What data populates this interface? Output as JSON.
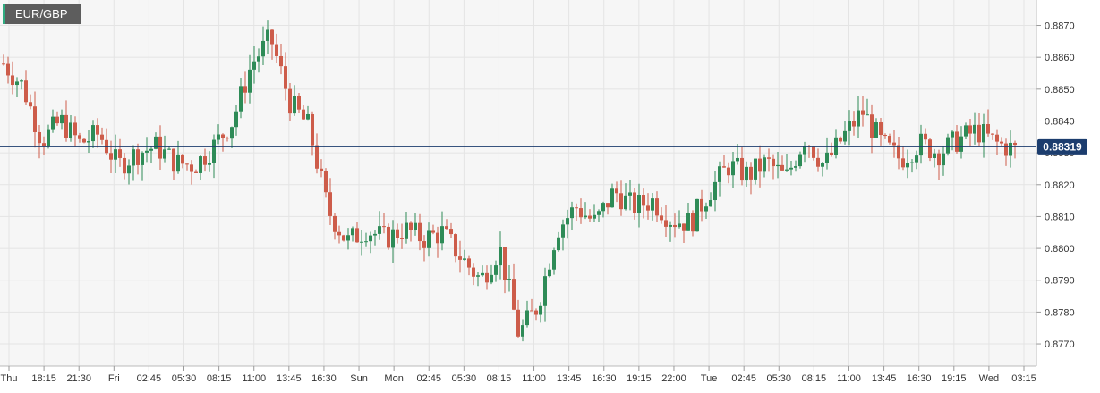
{
  "symbol": "EUR/GBP",
  "price_badge": "0.88319",
  "colors": {
    "plot_background": "#f6f6f6",
    "grid": "#e4e4e4",
    "up_candle": "#2e8b57",
    "down_candle": "#cd5c4a",
    "price_line": "#1c3d6e",
    "axis_text": "#333333"
  },
  "chart_data": {
    "type": "candlestick",
    "title": "EUR/GBP",
    "xlabel": "",
    "ylabel": "",
    "ylim": [
      0.8763,
      0.8878
    ],
    "y_ticks": [
      "0.8770",
      "0.8780",
      "0.8790",
      "0.8800",
      "0.8810",
      "0.8820",
      "0.8830",
      "0.8840",
      "0.8850",
      "0.8860",
      "0.8870"
    ],
    "x_ticks": [
      "Thu",
      "18:15",
      "21:30",
      "Fri",
      "02:45",
      "05:30",
      "08:15",
      "11:00",
      "13:45",
      "16:30",
      "Sun",
      "Mon",
      "02:45",
      "05:30",
      "08:15",
      "11:00",
      "13:45",
      "16:30",
      "19:15",
      "22:00",
      "Tue",
      "02:45",
      "05:30",
      "08:15",
      "11:00",
      "13:45",
      "16:30",
      "19:15",
      "Wed",
      "03:15"
    ],
    "last_price": 0.88319,
    "grid": true,
    "series": [
      {
        "x_label_anchors": [
          "Thu",
          "Fri",
          "08:15",
          "11:00",
          "13:45",
          "16:30",
          "Mon",
          "08:15",
          "11:00",
          "13:45",
          "Tue",
          "08:15",
          "13:45",
          "Wed",
          "03:15"
        ],
        "close_path": [
          0.8858,
          0.8851,
          0.8834,
          0.884,
          0.8833,
          0.8836,
          0.8826,
          0.883,
          0.8832,
          0.8827,
          0.8826,
          0.8832,
          0.884,
          0.8858,
          0.8866,
          0.8846,
          0.8838,
          0.8812,
          0.8802,
          0.8806,
          0.8803,
          0.8806,
          0.8803,
          0.8805,
          0.8797,
          0.879,
          0.88,
          0.8773,
          0.8782,
          0.8806,
          0.8813,
          0.8808,
          0.8818,
          0.8813,
          0.8815,
          0.8809,
          0.8808,
          0.8818,
          0.8826,
          0.8823,
          0.8827,
          0.8822,
          0.8835,
          0.8826,
          0.8835,
          0.8843,
          0.8833,
          0.8828,
          0.8833,
          0.883,
          0.8834,
          0.8837,
          0.8833,
          0.8831
        ]
      }
    ]
  }
}
